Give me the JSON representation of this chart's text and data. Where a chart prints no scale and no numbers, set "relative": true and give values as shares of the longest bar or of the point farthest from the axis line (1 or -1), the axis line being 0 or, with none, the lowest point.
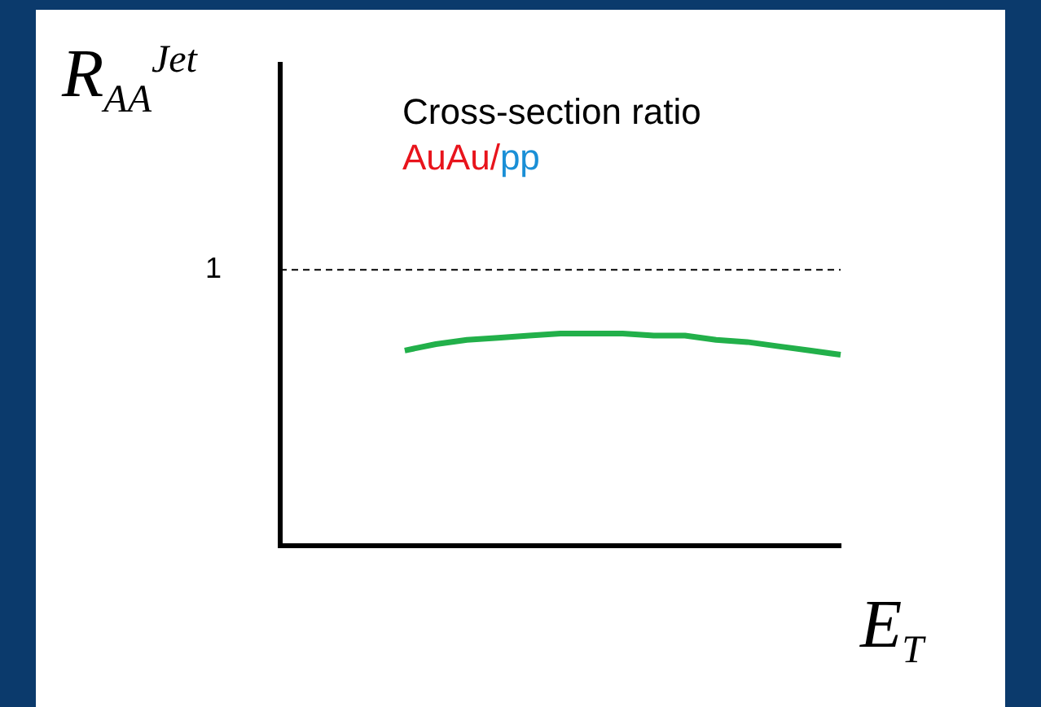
{
  "chart_data": {
    "type": "line",
    "ylabel": "R$_{AA}$$^{Jet}$",
    "xlabel": "E$_{T}$",
    "annotations": [
      "Cross-section ratio",
      "AuAu/pp"
    ],
    "categories": [
      null,
      null,
      null,
      null,
      null,
      null,
      null,
      null,
      null,
      null,
      null,
      null,
      null,
      null,
      null,
      null,
      null,
      null,
      null
    ],
    "series": [
      {
        "color": "#22b04a",
        "values": [
          null,
          null,
          null,
          null,
          0.92,
          0.95,
          0.97,
          0.98,
          0.99,
          1,
          1,
          1,
          0.99,
          0.99,
          0.97,
          0.96,
          0.94,
          0.92,
          0.9
        ]
      }
    ],
    "relative": true,
    "ref_lines": [
      {
        "axis": "y",
        "value": 1.3,
        "label": "1",
        "line_style": "dashed",
        "color": "#000000"
      }
    ]
  }
}
